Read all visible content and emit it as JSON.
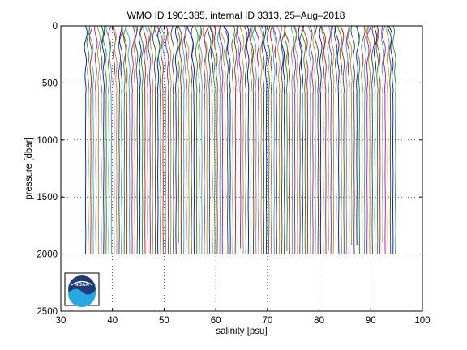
{
  "chart_data": {
    "type": "line",
    "title": "WMO ID 1901385, internal ID 3313, 25–Aug–2018",
    "xlabel": "salinity [psu]",
    "ylabel": "pressure [dbar]",
    "xlim": [
      30,
      100
    ],
    "ylim": [
      0,
      2500
    ],
    "y_reversed": true,
    "xticks": [
      30,
      40,
      50,
      60,
      70,
      80,
      90,
      100
    ],
    "yticks": [
      0,
      500,
      1000,
      1500,
      2000,
      2500
    ],
    "grid": "dotted",
    "profiles": {
      "count": 121,
      "base_salinity_first": 34.8,
      "offset_step_psu": 0.5,
      "surface_salinity_range": [
        33.9,
        35.4
      ],
      "deep_salinity": 34.9,
      "max_pressure": 2000
    },
    "colors": [
      "#0000ff",
      "#00a000",
      "#ff0000",
      "#00c0c0",
      "#c000c0",
      "#a0a000",
      "#404040"
    ]
  },
  "logo": {
    "text": "NOAA"
  }
}
